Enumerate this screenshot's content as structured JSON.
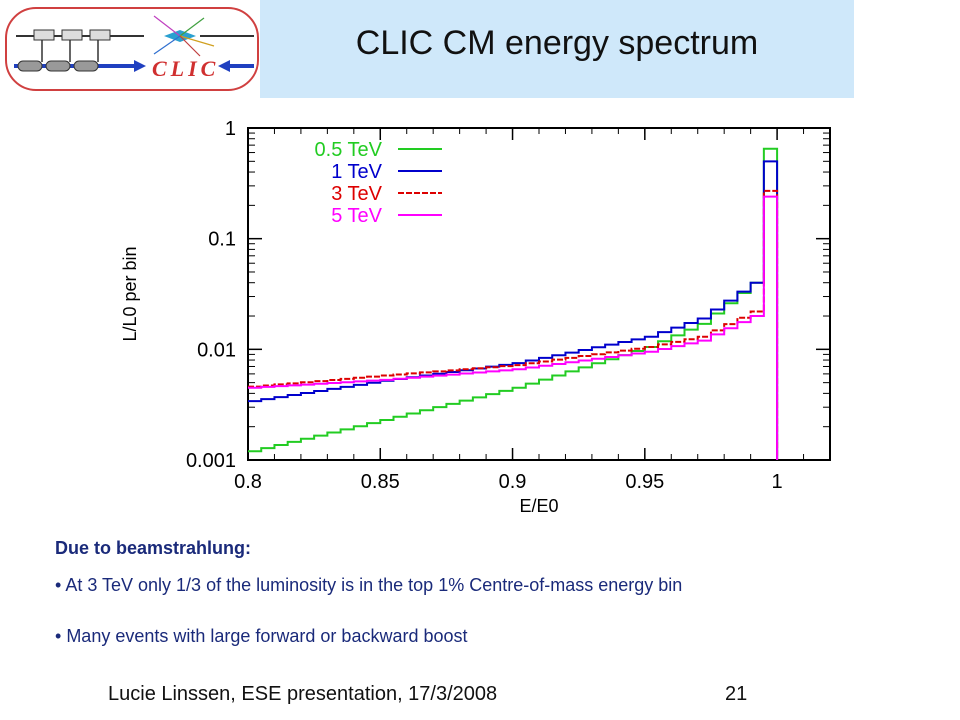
{
  "header": {
    "title": "CLIC CM energy spectrum",
    "logo_text": "CLIC"
  },
  "chart_data": {
    "type": "line",
    "title": "",
    "xlabel": "E/E0",
    "ylabel": "L/L0 per bin",
    "xlim": [
      0.8,
      1.02
    ],
    "ylim": [
      0.001,
      1
    ],
    "y_scale": "log",
    "x_ticks": [
      "0.8",
      "0.85",
      "0.9",
      "0.95",
      "1"
    ],
    "y_ticks": [
      "0.001",
      "0.01",
      "0.1",
      "1"
    ],
    "legend_position": "top-left",
    "grid": false,
    "series": [
      {
        "name": "0.5 TeV",
        "color": "#22cc22",
        "x": [
          0.8,
          0.85,
          0.9,
          0.95,
          0.97,
          0.99,
          0.995,
          1.0
        ],
        "y": [
          0.0012,
          0.0023,
          0.0045,
          0.0105,
          0.017,
          0.04,
          0.65,
          0.001
        ]
      },
      {
        "name": "1 TeV",
        "color": "#0000cc",
        "x": [
          0.8,
          0.85,
          0.9,
          0.95,
          0.97,
          0.99,
          0.995,
          1.0
        ],
        "y": [
          0.0034,
          0.0052,
          0.0075,
          0.013,
          0.019,
          0.04,
          0.5,
          0.001
        ]
      },
      {
        "name": "3 TeV",
        "color": "#dd0000",
        "x": [
          0.8,
          0.85,
          0.9,
          0.95,
          0.97,
          0.99,
          0.995,
          1.0
        ],
        "y": [
          0.0046,
          0.0058,
          0.0072,
          0.0105,
          0.013,
          0.022,
          0.27,
          0.001
        ]
      },
      {
        "name": "5 TeV",
        "color": "#ff00ff",
        "x": [
          0.8,
          0.85,
          0.9,
          0.95,
          0.97,
          0.99,
          0.995,
          1.0
        ],
        "y": [
          0.0045,
          0.0053,
          0.0066,
          0.0095,
          0.012,
          0.02,
          0.24,
          0.001
        ]
      }
    ]
  },
  "text": {
    "heading": "Due to beamstrahlung:",
    "bullets": [
      "At 3 TeV only 1/3 of the luminosity is in the top 1% Centre-of-mass energy bin",
      "Many events with large forward or backward boost"
    ]
  },
  "footer": {
    "author": "Lucie Linssen, ESE presentation, 17/3/2008",
    "page": "21"
  }
}
